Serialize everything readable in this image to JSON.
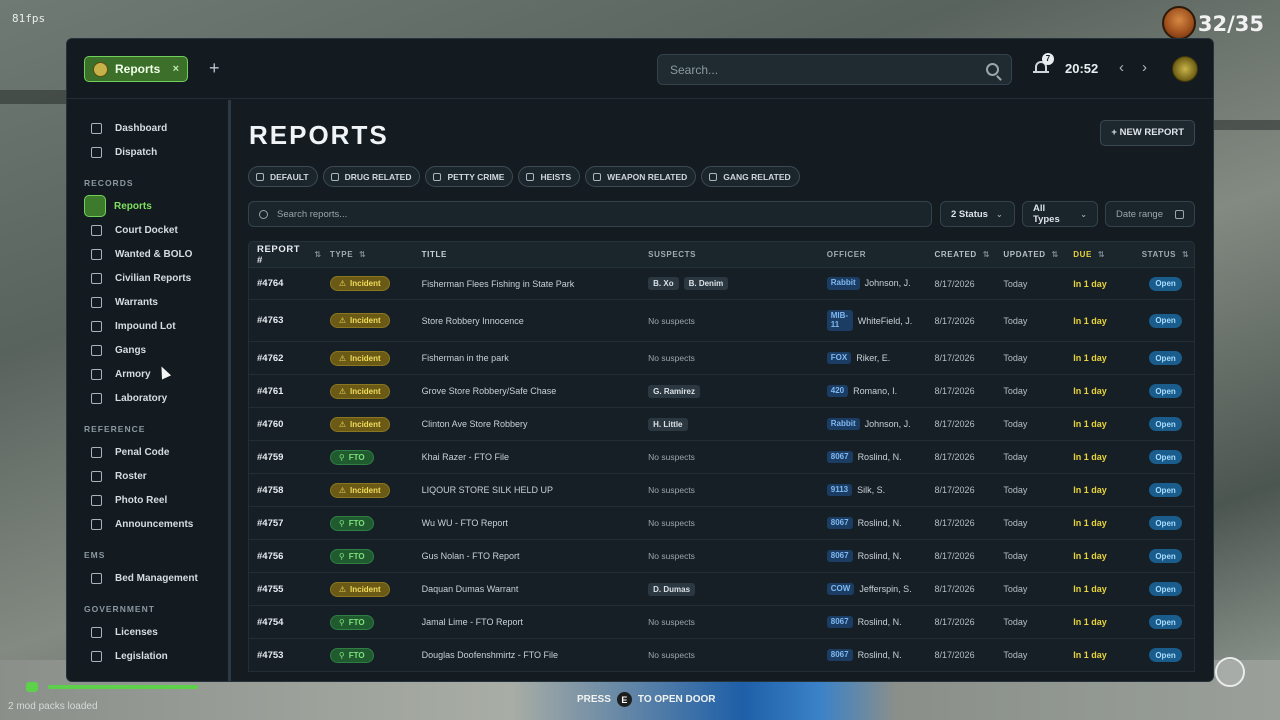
{
  "hud": {
    "fps": "81fps",
    "player_count": "32/35",
    "mods_text": "2 mod packs loaded",
    "prompt_press": "PRESS",
    "prompt_key": "E",
    "prompt_action": "TO OPEN DOOR"
  },
  "topbar": {
    "tab_label": "Reports",
    "tab_close": "×",
    "add_tab": "+",
    "search_placeholder": "Search...",
    "notification_count": "7",
    "time": "20:52",
    "prev": "‹",
    "next": "›"
  },
  "sidebar": {
    "top_items": [
      {
        "label": "Dashboard",
        "icon": "home-icon"
      },
      {
        "label": "Dispatch",
        "icon": "radio-icon"
      }
    ],
    "sections": [
      {
        "title": "RECORDS",
        "items": [
          {
            "label": "Reports",
            "icon": "reports-icon",
            "active": true
          },
          {
            "label": "Court Docket",
            "icon": "court-icon"
          },
          {
            "label": "Wanted & BOLO",
            "icon": "wanted-icon"
          },
          {
            "label": "Civilian Reports",
            "icon": "chat-icon"
          },
          {
            "label": "Warrants",
            "icon": "document-icon"
          },
          {
            "label": "Impound Lot",
            "icon": "car-icon"
          },
          {
            "label": "Gangs",
            "icon": "shield-icon"
          },
          {
            "label": "Armory",
            "icon": "armory-icon"
          },
          {
            "label": "Laboratory",
            "icon": "flask-icon"
          }
        ]
      },
      {
        "title": "REFERENCE",
        "items": [
          {
            "label": "Penal Code",
            "icon": "list-icon"
          },
          {
            "label": "Roster",
            "icon": "users-icon"
          },
          {
            "label": "Photo Reel",
            "icon": "camera-icon"
          },
          {
            "label": "Announcements",
            "icon": "megaphone-icon"
          }
        ]
      },
      {
        "title": "EMS",
        "items": [
          {
            "label": "Bed Management",
            "icon": "bed-icon"
          }
        ]
      },
      {
        "title": "GOVERNMENT",
        "items": [
          {
            "label": "Licenses",
            "icon": "id-card-icon"
          },
          {
            "label": "Legislation",
            "icon": "gavel-icon"
          }
        ]
      }
    ]
  },
  "main": {
    "title": "REPORTS",
    "new_report_label": "+ NEW REPORT",
    "tags": [
      {
        "label": "DEFAULT",
        "icon": "document-icon"
      },
      {
        "label": "DRUG RELATED",
        "icon": "pill-icon"
      },
      {
        "label": "PETTY CRIME",
        "icon": "warning-icon"
      },
      {
        "label": "HEISTS",
        "icon": "lock-icon"
      },
      {
        "label": "WEAPON RELATED",
        "icon": "target-icon"
      },
      {
        "label": "GANG RELATED",
        "icon": "users-icon"
      }
    ],
    "search_placeholder": "Search reports...",
    "status_filter": "2 Status",
    "type_filter": "All Types",
    "date_filter": "Date range",
    "columns": [
      "REPORT #",
      "TYPE",
      "TITLE",
      "SUSPECTS",
      "OFFICER",
      "CREATED",
      "UPDATED",
      "DUE",
      "STATUS"
    ],
    "rows": [
      {
        "id": "#4764",
        "type": "Incident",
        "title": "Fisherman Flees Fishing in State Park",
        "suspects": [
          "B. Xo",
          "B. Denim"
        ],
        "callsign": "Rabbit",
        "officer": "Johnson, J.",
        "created": "8/17/2026",
        "updated": "Today",
        "due": "In 1 day",
        "status": "Open"
      },
      {
        "id": "#4763",
        "type": "Incident",
        "title": "Store Robbery Innocence",
        "suspects": [],
        "callsign": "MIB-11",
        "officer": "WhiteField, J.",
        "created": "8/17/2026",
        "updated": "Today",
        "due": "In 1 day",
        "status": "Open"
      },
      {
        "id": "#4762",
        "type": "Incident",
        "title": "Fisherman in the park",
        "suspects": [],
        "callsign": "FOX",
        "officer": "Riker, E.",
        "created": "8/17/2026",
        "updated": "Today",
        "due": "In 1 day",
        "status": "Open"
      },
      {
        "id": "#4761",
        "type": "Incident",
        "title": "Grove Store Robbery/Safe Chase",
        "suspects": [
          "G. Ramirez"
        ],
        "callsign": "420",
        "officer": "Romano, I.",
        "created": "8/17/2026",
        "updated": "Today",
        "due": "In 1 day",
        "status": "Open"
      },
      {
        "id": "#4760",
        "type": "Incident",
        "title": "Clinton Ave Store Robbery",
        "suspects": [
          "H. Little"
        ],
        "callsign": "Rabbit",
        "officer": "Johnson, J.",
        "created": "8/17/2026",
        "updated": "Today",
        "due": "In 1 day",
        "status": "Open"
      },
      {
        "id": "#4759",
        "type": "FTO",
        "title": "Khai Razer - FTO File",
        "suspects": [],
        "callsign": "8067",
        "officer": "Roslind, N.",
        "created": "8/17/2026",
        "updated": "Today",
        "due": "In 1 day",
        "status": "Open"
      },
      {
        "id": "#4758",
        "type": "Incident",
        "title": "LIQOUR STORE SILK HELD UP",
        "suspects": [],
        "callsign": "9113",
        "officer": "Silk, S.",
        "created": "8/17/2026",
        "updated": "Today",
        "due": "In 1 day",
        "status": "Open"
      },
      {
        "id": "#4757",
        "type": "FTO",
        "title": "Wu WU - FTO Report",
        "suspects": [],
        "callsign": "8067",
        "officer": "Roslind, N.",
        "created": "8/17/2026",
        "updated": "Today",
        "due": "In 1 day",
        "status": "Open"
      },
      {
        "id": "#4756",
        "type": "FTO",
        "title": "Gus Nolan - FTO Report",
        "suspects": [],
        "callsign": "8067",
        "officer": "Roslind, N.",
        "created": "8/17/2026",
        "updated": "Today",
        "due": "In 1 day",
        "status": "Open"
      },
      {
        "id": "#4755",
        "type": "Incident",
        "title": "Daquan Dumas Warrant",
        "suspects": [
          "D. Dumas"
        ],
        "callsign": "COW",
        "officer": "Jefferspin, S.",
        "created": "8/17/2026",
        "updated": "Today",
        "due": "In 1 day",
        "status": "Open"
      },
      {
        "id": "#4754",
        "type": "FTO",
        "title": "Jamal Lime - FTO Report",
        "suspects": [],
        "callsign": "8067",
        "officer": "Roslind, N.",
        "created": "8/17/2026",
        "updated": "Today",
        "due": "In 1 day",
        "status": "Open"
      },
      {
        "id": "#4753",
        "type": "FTO",
        "title": "Douglas Doofenshmirtz - FTO File",
        "suspects": [],
        "callsign": "8067",
        "officer": "Roslind, N.",
        "created": "8/17/2026",
        "updated": "Today",
        "due": "In 1 day",
        "status": "Open"
      }
    ],
    "no_suspects_text": "No suspects"
  }
}
